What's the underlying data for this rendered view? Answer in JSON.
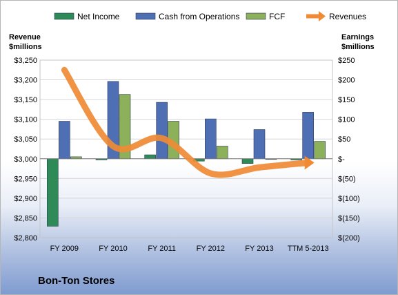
{
  "chart_data": {
    "type": "bar",
    "company": "Bon-Ton Stores",
    "categories": [
      "FY 2009",
      "FY 2010",
      "FY 2011",
      "FY 2012",
      "FY 2013",
      "TTM 5-2013"
    ],
    "left_axis": {
      "title_line1": "Revenue",
      "title_line2": "$millions",
      "min": 2800,
      "max": 3250,
      "step": 50,
      "tick_labels": [
        "$3,250",
        "$3,200",
        "$3,150",
        "$3,100",
        "$3,050",
        "$3,000",
        "$2,950",
        "$2,900",
        "$2,850",
        "$2,800"
      ]
    },
    "right_axis": {
      "title_line1": "Earnings",
      "title_line2": "$millions",
      "min": -200,
      "max": 250,
      "step": 50,
      "tick_labels": [
        "$250",
        "$200",
        "$150",
        "$100",
        "$50",
        "$-",
        "$(50)",
        "$(100)",
        "$(150)",
        "$(200)"
      ]
    },
    "series": [
      {
        "name": "Net Income",
        "type": "bar",
        "axis": "right",
        "color": "#2e8b57",
        "values": [
          -171,
          -3,
          10,
          -6,
          -12,
          -3
        ]
      },
      {
        "name": "Cash from Operations",
        "type": "bar",
        "axis": "right",
        "color": "#4f6fb5",
        "values": [
          95,
          196,
          143,
          101,
          74,
          118
        ]
      },
      {
        "name": "FCF",
        "type": "bar",
        "axis": "right",
        "color": "#8db05a",
        "values": [
          5,
          163,
          95,
          32,
          0,
          44
        ]
      },
      {
        "name": "Revenues",
        "type": "line",
        "axis": "left",
        "color": "#f08a35",
        "values": [
          3225,
          3032,
          3052,
          2963,
          2978,
          2990
        ]
      }
    ],
    "grid": true,
    "legend_position": "top"
  }
}
